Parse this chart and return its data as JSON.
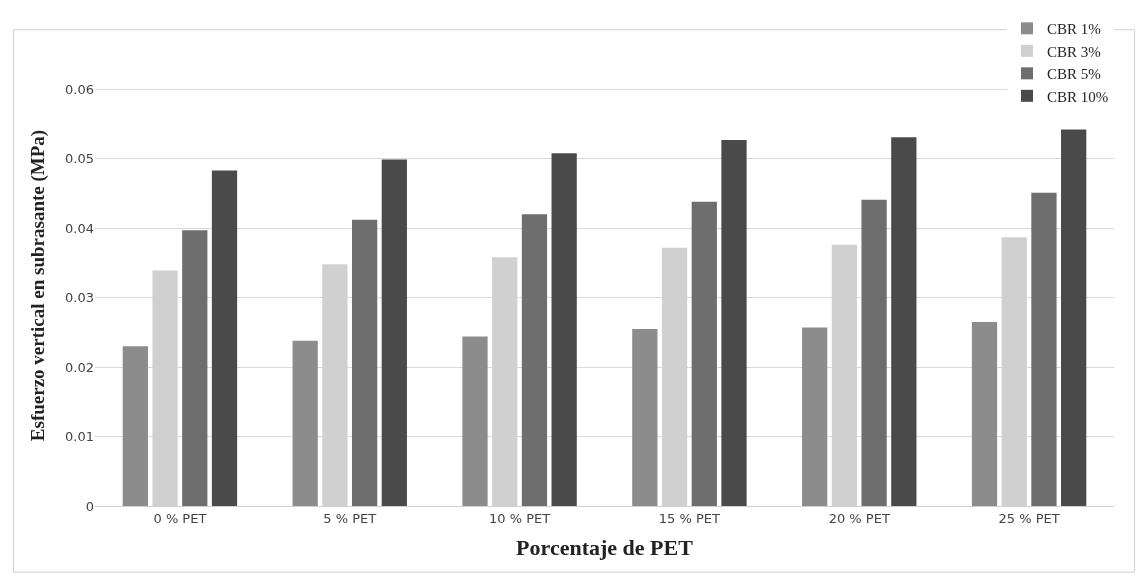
{
  "chart_data": {
    "type": "bar",
    "xlabel": "Porcentaje de PET",
    "ylabel": "Esfuerzo vertical en subrasante (MPa)",
    "categories": [
      "0 % PET",
      "5 % PET",
      "10 % PET",
      "15 % PET",
      "20 % PET",
      "25 % PET"
    ],
    "series": [
      {
        "name": "CBR 1%",
        "color": "#8c8c8c",
        "values": [
          0.023,
          0.0238,
          0.0244,
          0.0255,
          0.0257,
          0.0265
        ]
      },
      {
        "name": "CBR 3%",
        "color": "#d0d0d0",
        "values": [
          0.0339,
          0.0348,
          0.0358,
          0.0372,
          0.0376,
          0.0387
        ]
      },
      {
        "name": "CBR 5%",
        "color": "#6e6e6e",
        "values": [
          0.0397,
          0.0412,
          0.042,
          0.0438,
          0.0441,
          0.0451
        ]
      },
      {
        "name": "CBR 10%",
        "color": "#4a4a4a",
        "values": [
          0.0483,
          0.0499,
          0.0508,
          0.0527,
          0.0531,
          0.0542
        ]
      }
    ],
    "ylim": [
      0,
      0.0635
    ],
    "yticks": [
      0,
      0.01,
      0.02,
      0.03,
      0.04,
      0.05,
      0.06
    ],
    "grid": "y",
    "legend": "top right"
  }
}
